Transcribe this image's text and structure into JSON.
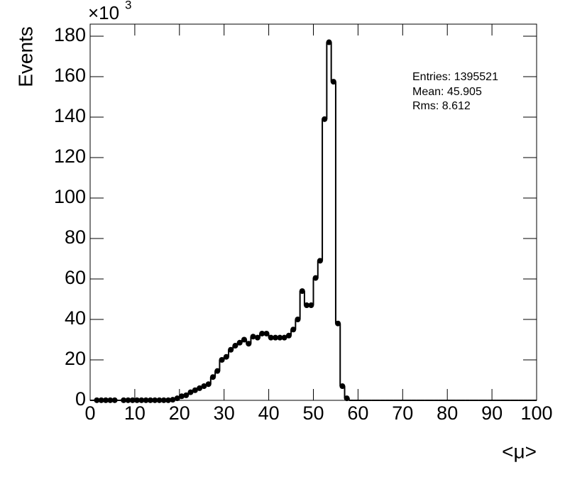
{
  "chart_data": {
    "type": "histogram",
    "x_label": "<μ>",
    "y_label": "Events",
    "y_multiplier": {
      "base": "×10",
      "exponent": "3"
    },
    "stats": [
      "Entries: 1395521",
      "Mean: 45.905",
      "Rms: 8.612"
    ],
    "bins": [
      0,
      1,
      2,
      3,
      4,
      5,
      6,
      7,
      8,
      9,
      10,
      11,
      12,
      13,
      14,
      15,
      16,
      17,
      18,
      19,
      20,
      21,
      22,
      23,
      24,
      25,
      26,
      27,
      28,
      29,
      30,
      31,
      32,
      33,
      34,
      35,
      36,
      37,
      38,
      39,
      40,
      41,
      42,
      43,
      44,
      45,
      46,
      47,
      48,
      49,
      50,
      51,
      52,
      53,
      54,
      55,
      56,
      57,
      58,
      59,
      60,
      61,
      62,
      63,
      64,
      65,
      66,
      67,
      68,
      69,
      70,
      71,
      72,
      73,
      74,
      75,
      76,
      77,
      78,
      79,
      80,
      81,
      82,
      83,
      84,
      85,
      86,
      87,
      88,
      89,
      90,
      91,
      92,
      93,
      94,
      95,
      96,
      97,
      98,
      99,
      100
    ],
    "values": [
      0,
      0.05,
      0.05,
      0.05,
      0.05,
      0.05,
      0,
      0.05,
      0.05,
      0.05,
      0.05,
      0.05,
      0.05,
      0.05,
      0.05,
      0.05,
      0.05,
      0.05,
      0.3,
      1,
      2,
      2.5,
      4,
      5,
      6,
      7,
      8,
      11.5,
      14.5,
      20,
      21.5,
      25,
      27,
      28.5,
      30,
      28,
      31.5,
      31,
      33,
      33,
      31,
      31,
      31,
      31,
      32,
      35,
      40,
      54,
      47,
      47,
      60.5,
      69,
      139,
      177,
      157.5,
      38,
      7,
      1,
      0,
      0,
      0,
      0,
      0,
      0,
      0,
      0,
      0,
      0,
      0,
      0,
      0,
      0,
      0,
      0,
      0,
      0,
      0,
      0,
      0,
      0,
      0,
      0,
      0,
      0,
      0,
      0,
      0,
      0,
      0,
      0,
      0,
      0,
      0,
      0,
      0,
      0,
      0,
      0,
      0,
      0
    ],
    "color": "#000000",
    "xlim": [
      0,
      100
    ],
    "xticks": [
      0,
      10,
      20,
      30,
      40,
      50,
      60,
      70,
      80,
      90,
      100
    ],
    "ylim": [
      0,
      180
    ],
    "yticks": [
      0,
      20,
      40,
      60,
      80,
      100,
      120,
      140,
      160,
      180
    ]
  }
}
